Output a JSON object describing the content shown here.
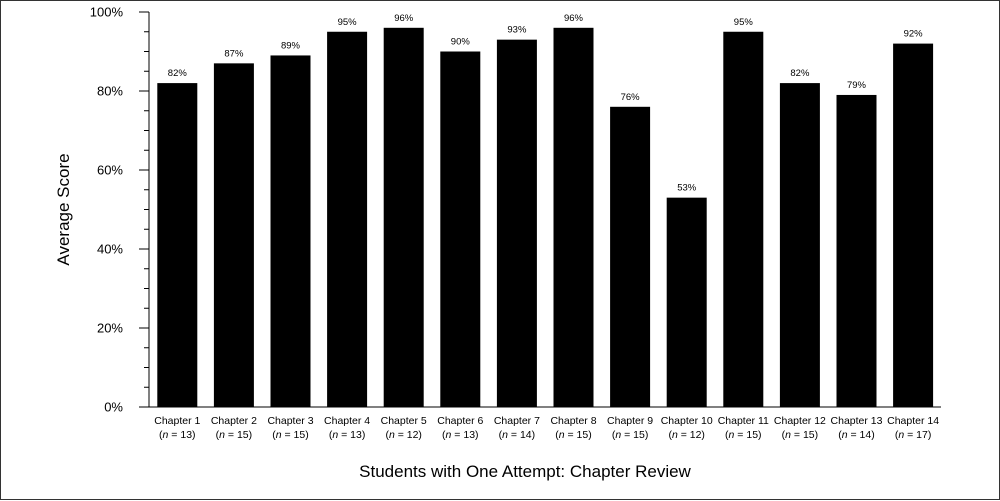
{
  "chart_data": {
    "type": "bar",
    "categories": [
      "Chapter 1",
      "Chapter 2",
      "Chapter 3",
      "Chapter 4",
      "Chapter 5",
      "Chapter 6",
      "Chapter 7",
      "Chapter 8",
      "Chapter 9",
      "Chapter 10",
      "Chapter 11",
      "Chapter 12",
      "Chapter 13",
      "Chapter 14"
    ],
    "n_values": [
      "13",
      "15",
      "15",
      "13",
      "12",
      "13",
      "14",
      "15",
      "15",
      "12",
      "15",
      "15",
      "14",
      "17"
    ],
    "values": [
      82,
      87,
      89,
      95,
      96,
      90,
      93,
      96,
      76,
      53,
      95,
      82,
      79,
      92
    ],
    "data_labels": [
      "82%",
      "87%",
      "89%",
      "95%",
      "96%",
      "90%",
      "93%",
      "96%",
      "76%",
      "53%",
      "95%",
      "82%",
      "79%",
      "92%"
    ],
    "title": "",
    "xlabel": "Students with One Attempt: Chapter Review",
    "ylabel": "Average Score",
    "ylim": [
      0,
      100
    ],
    "yticks": [
      0,
      20,
      40,
      60,
      80,
      100
    ],
    "ytick_labels": [
      "0%",
      "20%",
      "40%",
      "60%",
      "80%",
      "100%"
    ],
    "n_prefix": "n",
    "n_equals": " = ",
    "grid": false,
    "legend": "none",
    "bar_color": "#000000"
  }
}
